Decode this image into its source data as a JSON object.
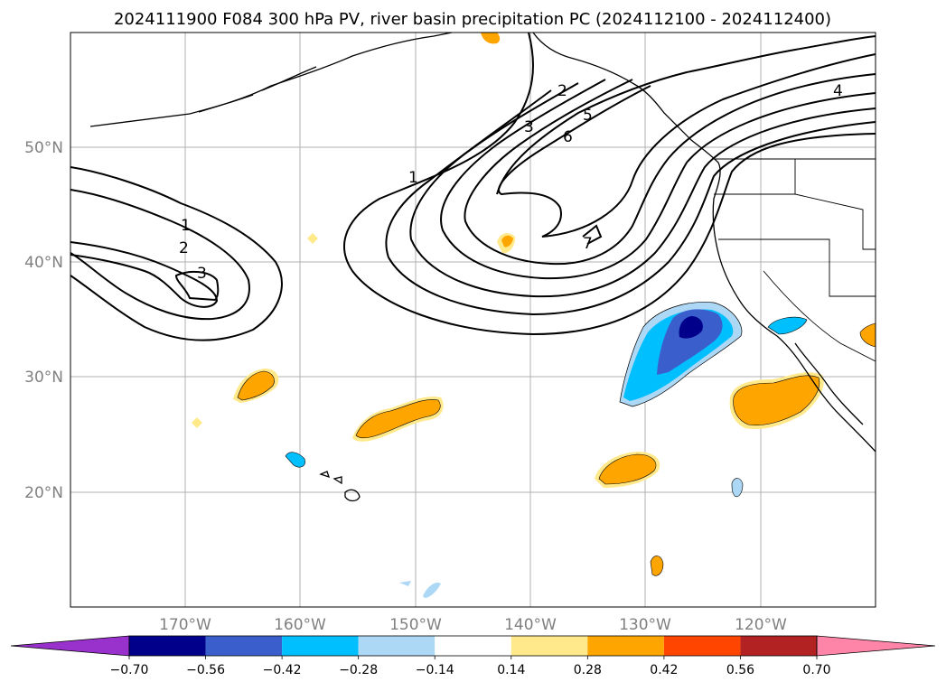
{
  "title": "2024111900 F084 300 hPa PV, river basin precipitation PC (2024112100 - 2024112400)",
  "lat_labels": [
    "50°N",
    "40°N",
    "30°N",
    "20°N"
  ],
  "lon_labels": [
    "170°W",
    "160°W",
    "150°W",
    "140°W",
    "130°W",
    "120°W"
  ],
  "colorbar": {
    "tick_labels": [
      "−0.70",
      "−0.56",
      "−0.42",
      "−0.28",
      "−0.14",
      "0.14",
      "0.28",
      "0.42",
      "0.56",
      "0.70"
    ],
    "colors": [
      "#9932cc",
      "#00008b",
      "#3a5fcd",
      "#00bfff",
      "#add8f5",
      "#ffffff",
      "#ffe98a",
      "#ffa500",
      "#ff4500",
      "#b22222",
      "#ff85a8"
    ]
  },
  "pv_contour_labels": [
    "1",
    "2",
    "3",
    "1",
    "2",
    "3",
    "5",
    "6",
    "7",
    "4"
  ]
}
